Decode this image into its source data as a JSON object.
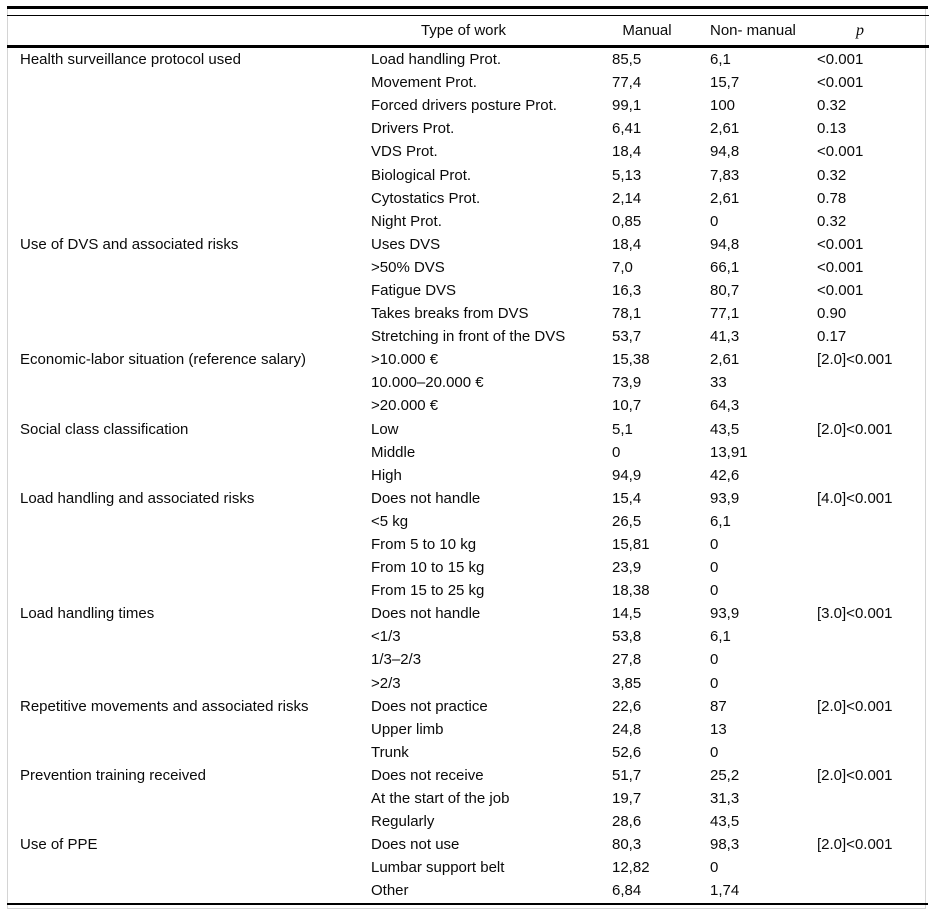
{
  "table": {
    "headers": {
      "category": "",
      "type_of_work": "Type of work",
      "manual": "Manual",
      "non_manual": "Non- manual",
      "p": "p"
    },
    "groups": [
      {
        "category": "Health surveillance protocol used",
        "rows": [
          {
            "type": "Load handling Prot.",
            "manual": "85,5",
            "non_manual": "6,1",
            "p": "<0.001"
          },
          {
            "type": "Movement Prot.",
            "manual": "77,4",
            "non_manual": "15,7",
            "p": "<0.001"
          },
          {
            "type": "Forced drivers posture Prot.",
            "manual": "99,1",
            "non_manual": "100",
            "p": "0.32"
          },
          {
            "type": "Drivers Prot.",
            "manual": "6,41",
            "non_manual": "2,61",
            "p": "0.13"
          },
          {
            "type": "VDS Prot.",
            "manual": "18,4",
            "non_manual": "94,8",
            "p": "<0.001"
          },
          {
            "type": "Biological Prot.",
            "manual": "5,13",
            "non_manual": "7,83",
            "p": "0.32"
          },
          {
            "type": "Cytostatics Prot.",
            "manual": "2,14",
            "non_manual": "2,61",
            "p": "0.78"
          },
          {
            "type": "Night Prot.",
            "manual": "0,85",
            "non_manual": "0",
            "p": "0.32"
          }
        ]
      },
      {
        "category": "Use of DVS and associated risks",
        "rows": [
          {
            "type": "Uses DVS",
            "manual": "18,4",
            "non_manual": "94,8",
            "p": "<0.001"
          },
          {
            "type": ">50% DVS",
            "manual": "7,0",
            "non_manual": "66,1",
            "p": "<0.001"
          },
          {
            "type": "Fatigue DVS",
            "manual": "16,3",
            "non_manual": "80,7",
            "p": "<0.001"
          },
          {
            "type": "Takes breaks from DVS",
            "manual": "78,1",
            "non_manual": "77,1",
            "p": "0.90"
          },
          {
            "type": "Stretching in front of the DVS",
            "manual": "53,7",
            "non_manual": "41,3",
            "p": "0.17"
          }
        ]
      },
      {
        "category": "Economic-labor situation (reference salary)",
        "rows": [
          {
            "type": ">10.000 €",
            "manual": "15,38",
            "non_manual": "2,61",
            "p": "[2.0]<0.001"
          },
          {
            "type": "10.000–20.000 €",
            "manual": "73,9",
            "non_manual": "33",
            "p": ""
          },
          {
            "type": ">20.000 €",
            "manual": "10,7",
            "non_manual": "64,3",
            "p": ""
          }
        ]
      },
      {
        "category": "Social class classification",
        "rows": [
          {
            "type": "Low",
            "manual": "5,1",
            "non_manual": "43,5",
            "p": "[2.0]<0.001"
          },
          {
            "type": "Middle",
            "manual": "0",
            "non_manual": "13,91",
            "p": ""
          },
          {
            "type": "High",
            "manual": "94,9",
            "non_manual": "42,6",
            "p": ""
          }
        ]
      },
      {
        "category": "Load handling and associated risks",
        "rows": [
          {
            "type": "Does not handle",
            "manual": "15,4",
            "non_manual": "93,9",
            "p": "[4.0]<0.001"
          },
          {
            "type": "<5 kg",
            "manual": "26,5",
            "non_manual": "6,1",
            "p": ""
          },
          {
            "type": "From 5 to 10 kg",
            "manual": "15,81",
            "non_manual": "0",
            "p": ""
          },
          {
            "type": "From 10 to 15 kg",
            "manual": "23,9",
            "non_manual": "0",
            "p": ""
          },
          {
            "type": "From 15 to 25 kg",
            "manual": "18,38",
            "non_manual": "0",
            "p": ""
          }
        ]
      },
      {
        "category": "Load handling times",
        "rows": [
          {
            "type": "Does not handle",
            "manual": "14,5",
            "non_manual": "93,9",
            "p": "[3.0]<0.001"
          },
          {
            "type": "<1/3",
            "manual": "53,8",
            "non_manual": "6,1",
            "p": ""
          },
          {
            "type": "1/3–2/3",
            "manual": "27,8",
            "non_manual": "0",
            "p": ""
          },
          {
            "type": ">2/3",
            "manual": "3,85",
            "non_manual": "0",
            "p": ""
          }
        ]
      },
      {
        "category": "Repetitive movements and associated risks",
        "rows": [
          {
            "type": "Does not practice",
            "manual": "22,6",
            "non_manual": "87",
            "p": "[2.0]<0.001"
          },
          {
            "type": "Upper limb",
            "manual": "24,8",
            "non_manual": "13",
            "p": ""
          },
          {
            "type": "Trunk",
            "manual": "52,6",
            "non_manual": "0",
            "p": ""
          }
        ]
      },
      {
        "category": "Prevention training received",
        "rows": [
          {
            "type": "Does not receive",
            "manual": "51,7",
            "non_manual": "25,2",
            "p": "[2.0]<0.001"
          },
          {
            "type": "At the start of the job",
            "manual": "19,7",
            "non_manual": "31,3",
            "p": ""
          },
          {
            "type": "Regularly",
            "manual": "28,6",
            "non_manual": "43,5",
            "p": ""
          }
        ]
      },
      {
        "category": "Use of PPE",
        "rows": [
          {
            "type": "Does not use",
            "manual": "80,3",
            "non_manual": "98,3",
            "p": "[2.0]<0.001"
          },
          {
            "type": "Lumbar support belt",
            "manual": "12,82",
            "non_manual": "0",
            "p": ""
          },
          {
            "type": "Other",
            "manual": "6,84",
            "non_manual": "1,74",
            "p": ""
          }
        ]
      }
    ]
  }
}
